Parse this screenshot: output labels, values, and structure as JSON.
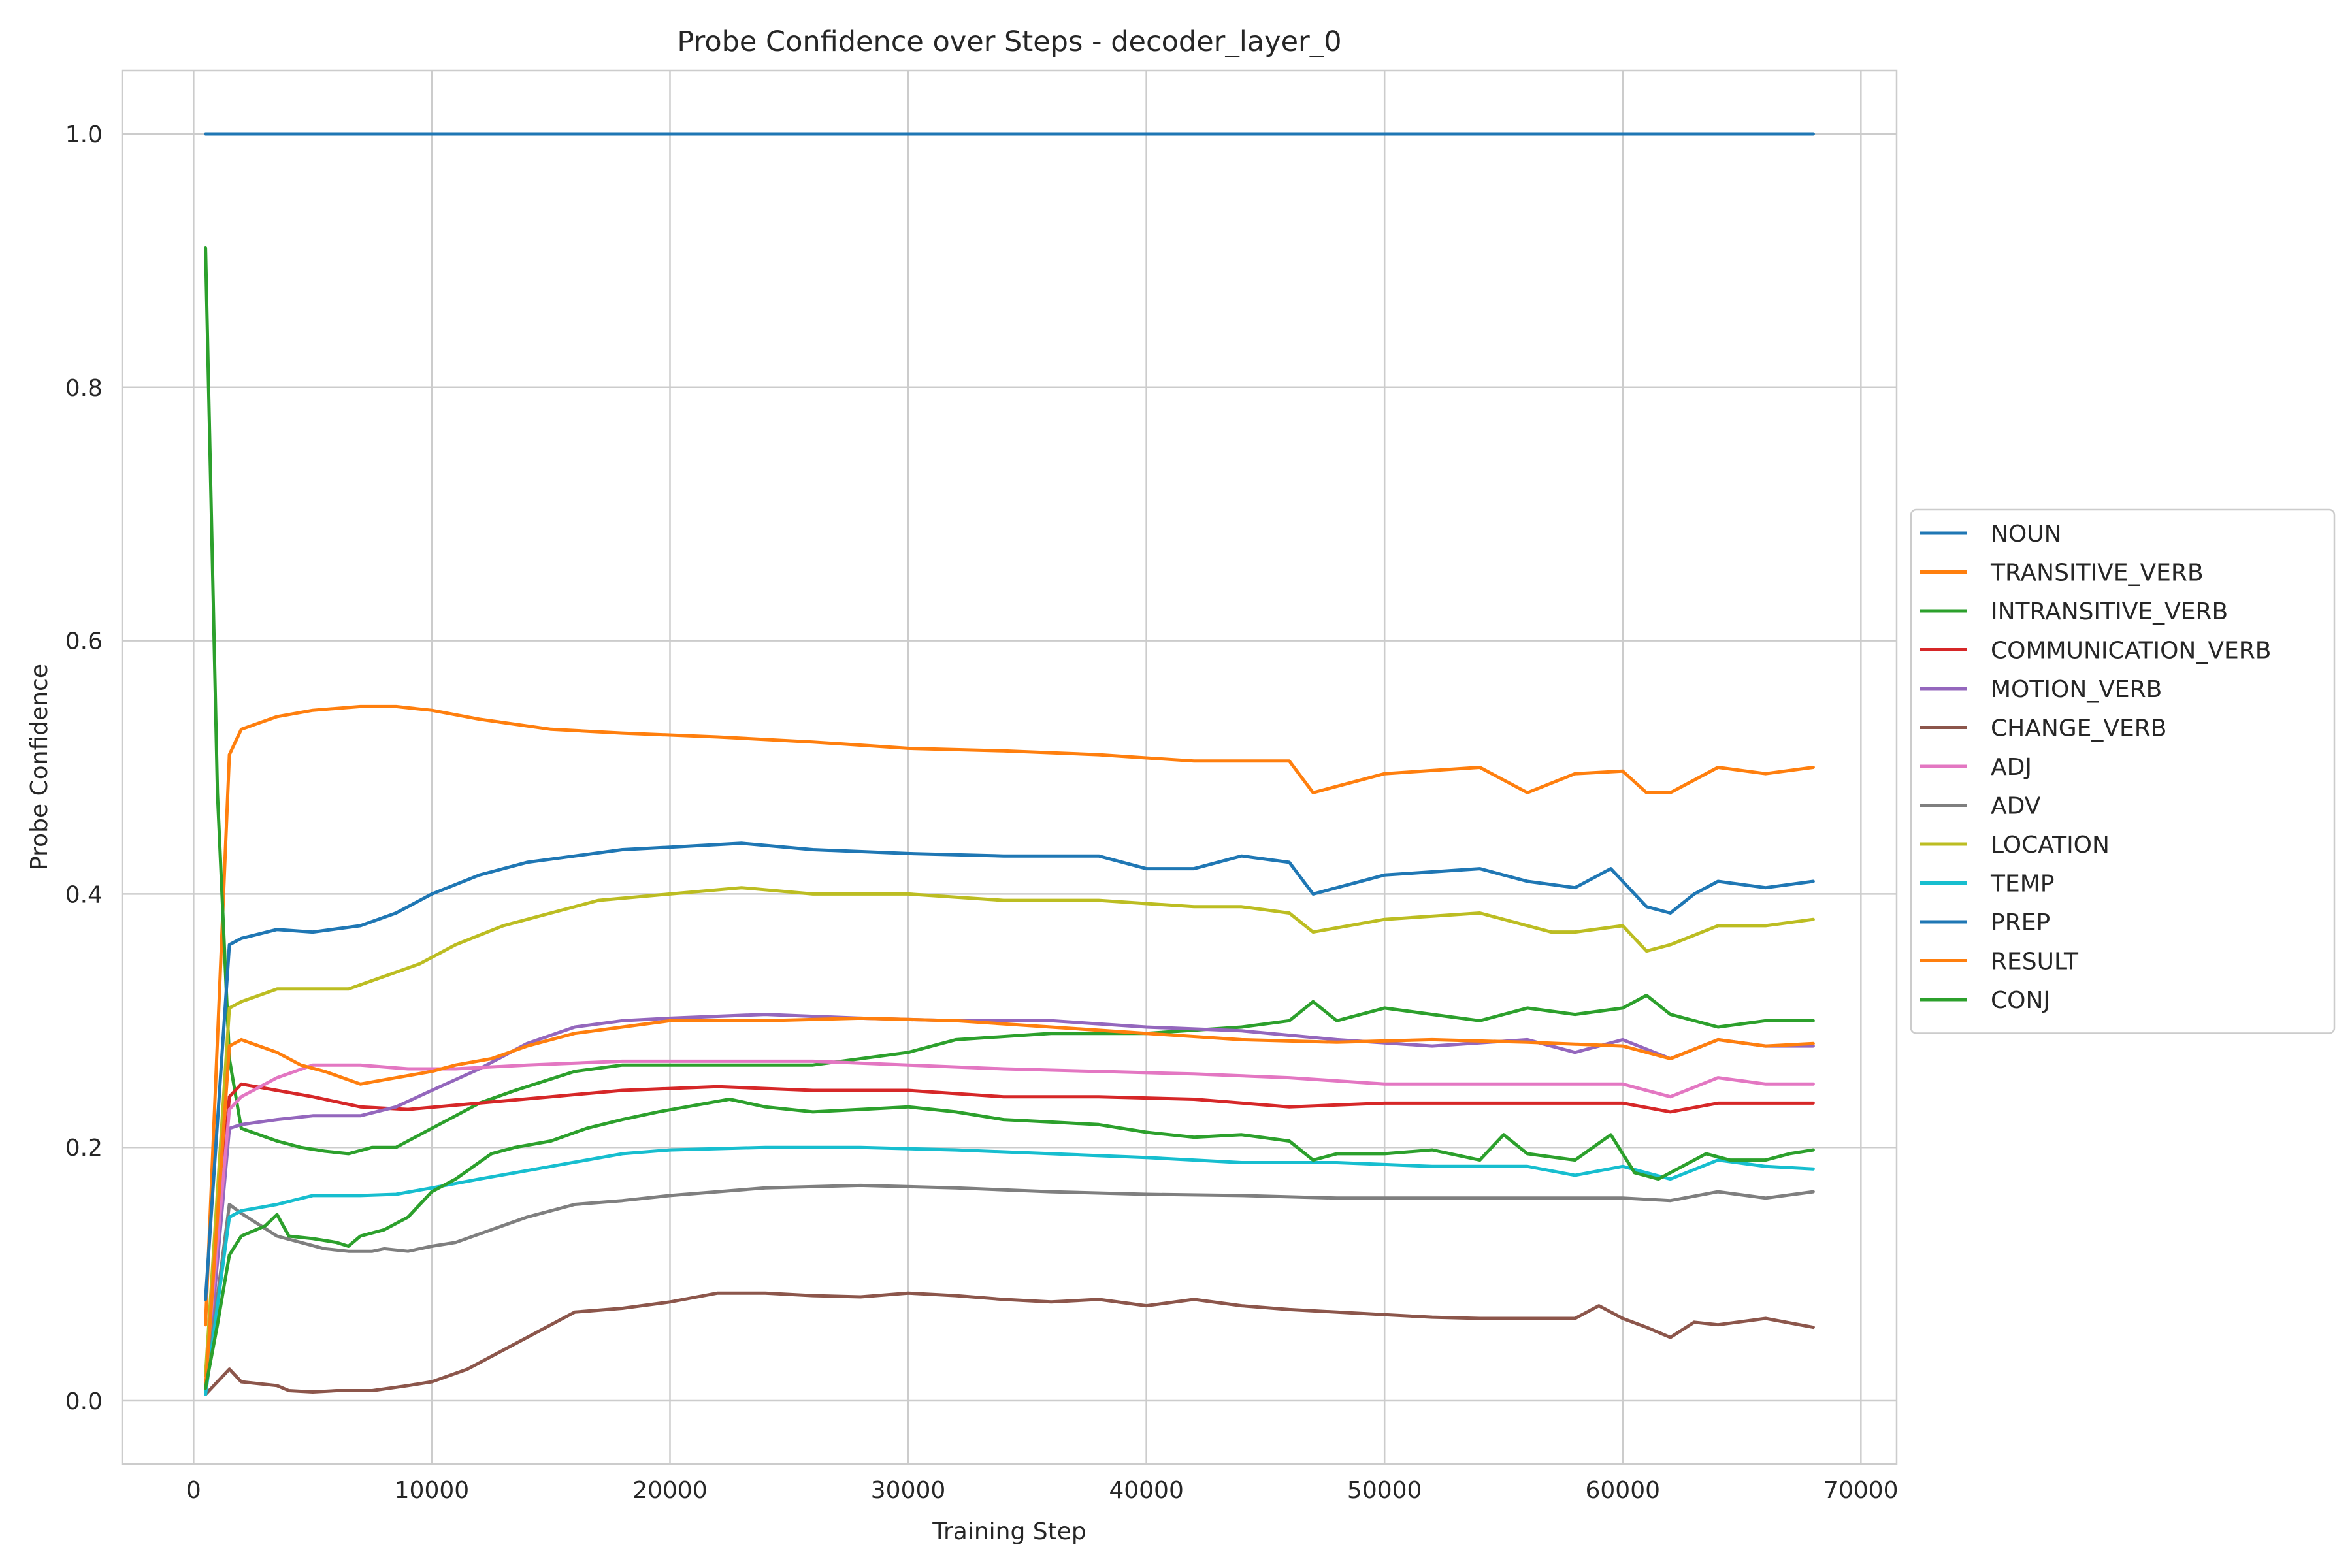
{
  "chart_data": {
    "type": "line",
    "title": "Probe Confidence over Steps - decoder_layer_0",
    "xlabel": "Training Step",
    "ylabel": "Probe Confidence",
    "xlim": [
      -3000,
      71500
    ],
    "ylim": [
      -0.05,
      1.05
    ],
    "xticks": [
      0,
      10000,
      20000,
      30000,
      40000,
      50000,
      60000,
      70000
    ],
    "yticks": [
      0.0,
      0.2,
      0.4,
      0.6,
      0.8,
      1.0
    ],
    "xtick_labels": [
      "0",
      "10000",
      "20000",
      "30000",
      "40000",
      "50000",
      "60000",
      "70000"
    ],
    "ytick_labels": [
      "0.0",
      "0.2",
      "0.4",
      "0.6",
      "0.8",
      "1.0"
    ],
    "grid": true,
    "legend_position": "center-right outside",
    "series": [
      {
        "name": "NOUN",
        "color": "#1f77b4",
        "x": [
          500,
          1500,
          10000,
          20000,
          30000,
          40000,
          50000,
          60000,
          68000
        ],
        "y": [
          1.0,
          1.0,
          1.0,
          1.0,
          1.0,
          1.0,
          1.0,
          1.0,
          1.0
        ]
      },
      {
        "name": "TRANSITIVE_VERB",
        "color": "#ff7f0e",
        "x": [
          500,
          1500,
          2000,
          3500,
          5000,
          7000,
          8500,
          10000,
          12000,
          15000,
          18000,
          22000,
          26000,
          30000,
          34000,
          38000,
          42000,
          46000,
          47000,
          50000,
          54000,
          56000,
          58000,
          60000,
          61000,
          62000,
          64000,
          66000,
          68000
        ],
        "y": [
          0.06,
          0.51,
          0.53,
          0.54,
          0.545,
          0.548,
          0.548,
          0.545,
          0.538,
          0.53,
          0.527,
          0.524,
          0.52,
          0.515,
          0.513,
          0.51,
          0.505,
          0.505,
          0.48,
          0.495,
          0.5,
          0.48,
          0.495,
          0.497,
          0.48,
          0.48,
          0.5,
          0.495,
          0.5
        ]
      },
      {
        "name": "INTRANSITIVE_VERB",
        "color": "#2ca02c",
        "x": [
          500,
          1000,
          1500,
          2000,
          3500,
          4500,
          5500,
          6500,
          7500,
          8500,
          10000,
          11000,
          12000,
          13500,
          16000,
          18000,
          22000,
          26000,
          30000,
          32000,
          36000,
          40000,
          44000,
          46000,
          47000,
          48000,
          50000,
          52000,
          54000,
          56000,
          58000,
          60000,
          61000,
          62000,
          64000,
          66000,
          68000
        ],
        "y": [
          0.91,
          0.48,
          0.27,
          0.215,
          0.205,
          0.2,
          0.197,
          0.195,
          0.2,
          0.2,
          0.215,
          0.225,
          0.235,
          0.245,
          0.26,
          0.265,
          0.265,
          0.265,
          0.275,
          0.285,
          0.29,
          0.29,
          0.295,
          0.3,
          0.315,
          0.3,
          0.31,
          0.305,
          0.3,
          0.31,
          0.305,
          0.31,
          0.32,
          0.305,
          0.295,
          0.3,
          0.3
        ]
      },
      {
        "name": "COMMUNICATION_VERB",
        "color": "#d62728",
        "x": [
          500,
          1500,
          2000,
          3500,
          5000,
          7000,
          9000,
          12000,
          15000,
          18000,
          22000,
          26000,
          30000,
          34000,
          38000,
          42000,
          46000,
          50000,
          54000,
          58000,
          60000,
          62000,
          64000,
          66000,
          68000
        ],
        "y": [
          0.02,
          0.24,
          0.25,
          0.245,
          0.24,
          0.232,
          0.23,
          0.235,
          0.24,
          0.245,
          0.248,
          0.245,
          0.245,
          0.24,
          0.24,
          0.238,
          0.232,
          0.235,
          0.235,
          0.235,
          0.235,
          0.228,
          0.235,
          0.235,
          0.235
        ]
      },
      {
        "name": "MOTION_VERB",
        "color": "#9467bd",
        "x": [
          500,
          1500,
          2000,
          3500,
          5000,
          7000,
          8500,
          10000,
          12000,
          14000,
          16000,
          18000,
          20000,
          24000,
          28000,
          32000,
          36000,
          40000,
          44000,
          48000,
          52000,
          56000,
          58000,
          60000,
          62000,
          64000,
          66000,
          68000
        ],
        "y": [
          0.005,
          0.215,
          0.218,
          0.222,
          0.225,
          0.225,
          0.232,
          0.245,
          0.262,
          0.282,
          0.295,
          0.3,
          0.302,
          0.305,
          0.302,
          0.3,
          0.3,
          0.295,
          0.292,
          0.285,
          0.28,
          0.285,
          0.275,
          0.285,
          0.27,
          0.285,
          0.28,
          0.28
        ]
      },
      {
        "name": "CHANGE_VERB",
        "color": "#8c564b",
        "x": [
          500,
          1500,
          2000,
          3500,
          4000,
          5000,
          6000,
          7500,
          9000,
          10000,
          11500,
          13000,
          14500,
          16000,
          18000,
          20000,
          22000,
          24000,
          26000,
          28000,
          30000,
          32000,
          34000,
          36000,
          38000,
          40000,
          42000,
          44000,
          46000,
          48000,
          50000,
          52000,
          54000,
          56000,
          58000,
          59000,
          60000,
          61000,
          62000,
          63000,
          64000,
          66000,
          68000
        ],
        "y": [
          0.005,
          0.025,
          0.015,
          0.012,
          0.008,
          0.007,
          0.008,
          0.008,
          0.012,
          0.015,
          0.025,
          0.04,
          0.055,
          0.07,
          0.073,
          0.078,
          0.085,
          0.085,
          0.083,
          0.082,
          0.085,
          0.083,
          0.08,
          0.078,
          0.08,
          0.075,
          0.08,
          0.075,
          0.072,
          0.07,
          0.068,
          0.066,
          0.065,
          0.065,
          0.065,
          0.075,
          0.065,
          0.058,
          0.05,
          0.062,
          0.06,
          0.065,
          0.058
        ]
      },
      {
        "name": "ADJ",
        "color": "#e377c2",
        "x": [
          500,
          1500,
          2000,
          3500,
          5000,
          7000,
          9000,
          11000,
          14000,
          18000,
          22000,
          26000,
          30000,
          34000,
          38000,
          42000,
          46000,
          50000,
          54000,
          58000,
          60000,
          62000,
          64000,
          66000,
          68000
        ],
        "y": [
          0.02,
          0.23,
          0.24,
          0.255,
          0.265,
          0.265,
          0.262,
          0.262,
          0.265,
          0.268,
          0.268,
          0.268,
          0.265,
          0.262,
          0.26,
          0.258,
          0.255,
          0.25,
          0.25,
          0.25,
          0.25,
          0.24,
          0.255,
          0.25,
          0.25
        ]
      },
      {
        "name": "ADV",
        "color": "#7f7f7f",
        "x": [
          500,
          1500,
          2000,
          3500,
          4500,
          5500,
          6500,
          7500,
          8000,
          9000,
          10000,
          11000,
          12500,
          14000,
          16000,
          18000,
          20000,
          22000,
          24000,
          28000,
          32000,
          36000,
          40000,
          44000,
          48000,
          52000,
          56000,
          60000,
          62000,
          64000,
          66000,
          68000
        ],
        "y": [
          0.01,
          0.155,
          0.148,
          0.13,
          0.125,
          0.12,
          0.118,
          0.118,
          0.12,
          0.118,
          0.122,
          0.125,
          0.135,
          0.145,
          0.155,
          0.158,
          0.162,
          0.165,
          0.168,
          0.17,
          0.168,
          0.165,
          0.163,
          0.162,
          0.16,
          0.16,
          0.16,
          0.16,
          0.158,
          0.165,
          0.16,
          0.165
        ]
      },
      {
        "name": "LOCATION",
        "color": "#bcbd22",
        "x": [
          500,
          1500,
          2000,
          3500,
          5000,
          6500,
          8000,
          9500,
          11000,
          13000,
          15000,
          17000,
          20000,
          23000,
          26000,
          30000,
          34000,
          38000,
          42000,
          44000,
          46000,
          47000,
          50000,
          54000,
          57000,
          58000,
          60000,
          61000,
          62000,
          64000,
          66000,
          68000
        ],
        "y": [
          0.02,
          0.31,
          0.315,
          0.325,
          0.325,
          0.325,
          0.335,
          0.345,
          0.36,
          0.375,
          0.385,
          0.395,
          0.4,
          0.405,
          0.4,
          0.4,
          0.395,
          0.395,
          0.39,
          0.39,
          0.385,
          0.37,
          0.38,
          0.385,
          0.37,
          0.37,
          0.375,
          0.355,
          0.36,
          0.375,
          0.375,
          0.38
        ]
      },
      {
        "name": "TEMP",
        "color": "#17becf",
        "x": [
          500,
          1500,
          2000,
          3500,
          5000,
          7000,
          8500,
          10000,
          12000,
          15000,
          18000,
          20000,
          24000,
          28000,
          32000,
          36000,
          40000,
          44000,
          48000,
          52000,
          56000,
          58000,
          60000,
          61000,
          62000,
          64000,
          66000,
          68000
        ],
        "y": [
          0.005,
          0.145,
          0.15,
          0.155,
          0.162,
          0.162,
          0.163,
          0.168,
          0.175,
          0.185,
          0.195,
          0.198,
          0.2,
          0.2,
          0.198,
          0.195,
          0.192,
          0.188,
          0.188,
          0.185,
          0.185,
          0.178,
          0.185,
          0.18,
          0.175,
          0.19,
          0.185,
          0.183
        ]
      },
      {
        "name": "PREP",
        "color": "#1f77b4",
        "x": [
          500,
          1500,
          2000,
          3500,
          5000,
          7000,
          8500,
          10000,
          12000,
          14000,
          16000,
          18000,
          20000,
          23000,
          26000,
          30000,
          34000,
          38000,
          40000,
          42000,
          44000,
          46000,
          47000,
          50000,
          54000,
          56000,
          58000,
          59500,
          61000,
          62000,
          63000,
          64000,
          66000,
          68000
        ],
        "y": [
          0.08,
          0.36,
          0.365,
          0.372,
          0.37,
          0.375,
          0.385,
          0.4,
          0.415,
          0.425,
          0.43,
          0.435,
          0.437,
          0.44,
          0.435,
          0.432,
          0.43,
          0.43,
          0.42,
          0.42,
          0.43,
          0.425,
          0.4,
          0.415,
          0.42,
          0.41,
          0.405,
          0.42,
          0.39,
          0.385,
          0.4,
          0.41,
          0.405,
          0.41
        ]
      },
      {
        "name": "RESULT",
        "color": "#ff7f0e",
        "x": [
          500,
          1500,
          2000,
          3500,
          4500,
          5500,
          7000,
          8500,
          10000,
          11000,
          12500,
          14000,
          16000,
          18000,
          20000,
          24000,
          28000,
          32000,
          36000,
          40000,
          44000,
          48000,
          52000,
          56000,
          60000,
          62000,
          64000,
          66000,
          68000
        ],
        "y": [
          0.01,
          0.28,
          0.285,
          0.275,
          0.265,
          0.26,
          0.25,
          0.255,
          0.26,
          0.265,
          0.27,
          0.28,
          0.29,
          0.295,
          0.3,
          0.3,
          0.302,
          0.3,
          0.295,
          0.29,
          0.285,
          0.283,
          0.285,
          0.283,
          0.28,
          0.27,
          0.285,
          0.28,
          0.282
        ]
      },
      {
        "name": "CONJ",
        "color": "#2ca02c",
        "x": [
          500,
          1000,
          1500,
          2000,
          3000,
          3500,
          4000,
          5000,
          6000,
          6500,
          7000,
          8000,
          9000,
          10000,
          11000,
          12500,
          13500,
          15000,
          16500,
          18000,
          19500,
          21000,
          22500,
          24000,
          26000,
          28000,
          30000,
          32000,
          34000,
          36000,
          38000,
          40000,
          42000,
          44000,
          46000,
          47000,
          48000,
          50000,
          52000,
          54000,
          55000,
          56000,
          58000,
          59500,
          60500,
          61500,
          62500,
          63500,
          64500,
          66000,
          67000,
          68000
        ],
        "y": [
          0.01,
          0.06,
          0.115,
          0.13,
          0.138,
          0.147,
          0.13,
          0.128,
          0.125,
          0.122,
          0.13,
          0.135,
          0.145,
          0.165,
          0.175,
          0.195,
          0.2,
          0.205,
          0.215,
          0.222,
          0.228,
          0.233,
          0.238,
          0.232,
          0.228,
          0.23,
          0.232,
          0.228,
          0.222,
          0.22,
          0.218,
          0.212,
          0.208,
          0.21,
          0.205,
          0.19,
          0.195,
          0.195,
          0.198,
          0.19,
          0.21,
          0.195,
          0.19,
          0.21,
          0.18,
          0.175,
          0.185,
          0.195,
          0.19,
          0.19,
          0.195,
          0.198
        ]
      }
    ]
  }
}
